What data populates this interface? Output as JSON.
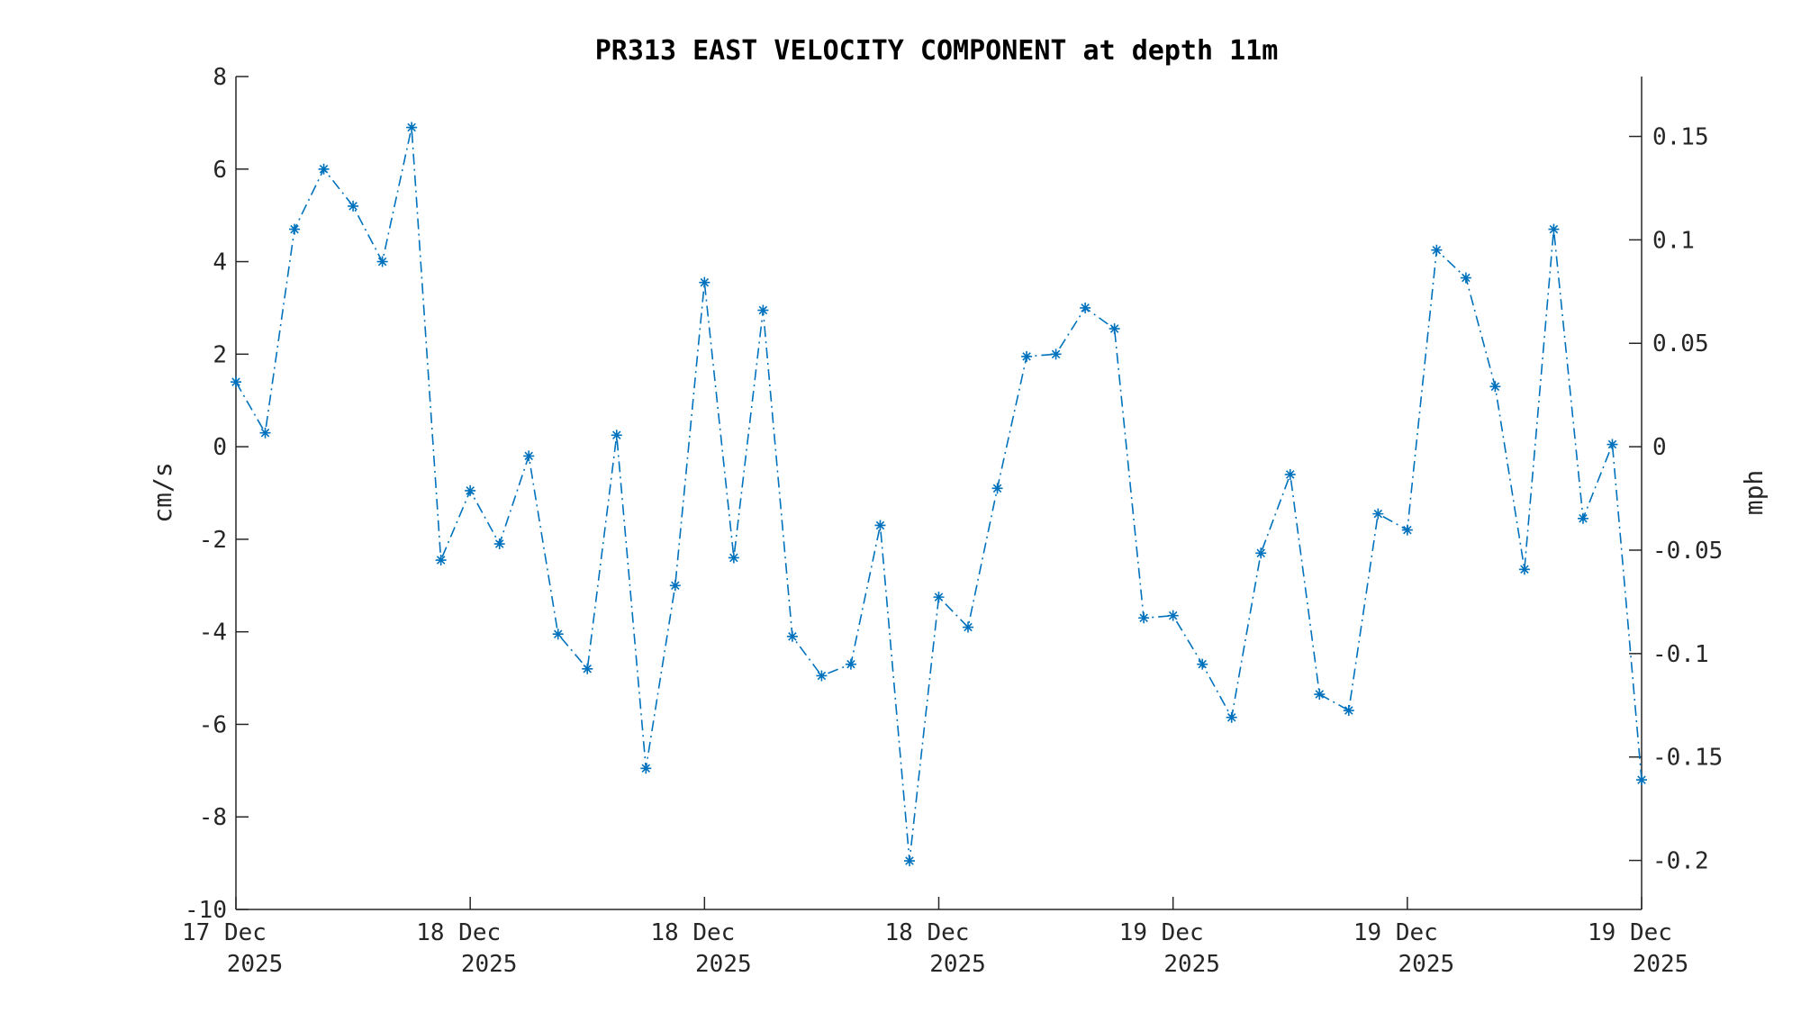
{
  "chart_data": {
    "type": "line",
    "title": "PR313 EAST VELOCITY COMPONENT at depth 11m",
    "ylabel": "cm/s",
    "ylabel_right": "mph",
    "ylim": [
      -10,
      8
    ],
    "yticks": [
      -10,
      -8,
      -6,
      -4,
      -2,
      0,
      2,
      4,
      6,
      8
    ],
    "yticks_right": [
      "0.15",
      "0.1",
      "0.05",
      "0",
      "-0.05",
      "-0.1",
      "-0.15",
      "-0.2"
    ],
    "yticks_right_values": [
      0.15,
      0.1,
      0.05,
      0,
      -0.05,
      -0.1,
      -0.15,
      -0.2
    ],
    "xlim": [
      0,
      48
    ],
    "xticks": [
      {
        "x": 0,
        "line1": "17 Dec",
        "line2": "2025"
      },
      {
        "x": 8,
        "line1": "18 Dec",
        "line2": "2025"
      },
      {
        "x": 16,
        "line1": "18 Dec",
        "line2": "2025"
      },
      {
        "x": 24,
        "line1": "18 Dec",
        "line2": "2025"
      },
      {
        "x": 32,
        "line1": "19 Dec",
        "line2": "2025"
      },
      {
        "x": 40,
        "line1": "19 Dec",
        "line2": "2025"
      },
      {
        "x": 48,
        "line1": "19 Dec",
        "line2": "2025"
      }
    ],
    "marker": "asterisk",
    "line_style": "dash-dot",
    "color": "#0072BD",
    "series": [
      {
        "values": [
          1.4,
          0.3,
          4.7,
          6.0,
          5.2,
          4.0,
          6.9,
          -2.45,
          -0.95,
          -2.1,
          -0.2,
          -4.05,
          -4.8,
          0.25,
          -6.95,
          -3.0,
          3.55,
          -2.4,
          2.95,
          -4.1,
          -4.95,
          -4.7,
          -1.7,
          -8.95,
          -3.25,
          -3.9,
          -0.9,
          1.95,
          2.0,
          3.0,
          2.55,
          -3.7,
          -3.65,
          -4.7,
          -5.85,
          -2.3,
          -0.6,
          -5.35,
          -5.7,
          -1.45,
          -1.8,
          4.25,
          3.65,
          1.3,
          -2.65,
          4.7,
          -1.55,
          0.05,
          -7.2
        ]
      }
    ]
  }
}
